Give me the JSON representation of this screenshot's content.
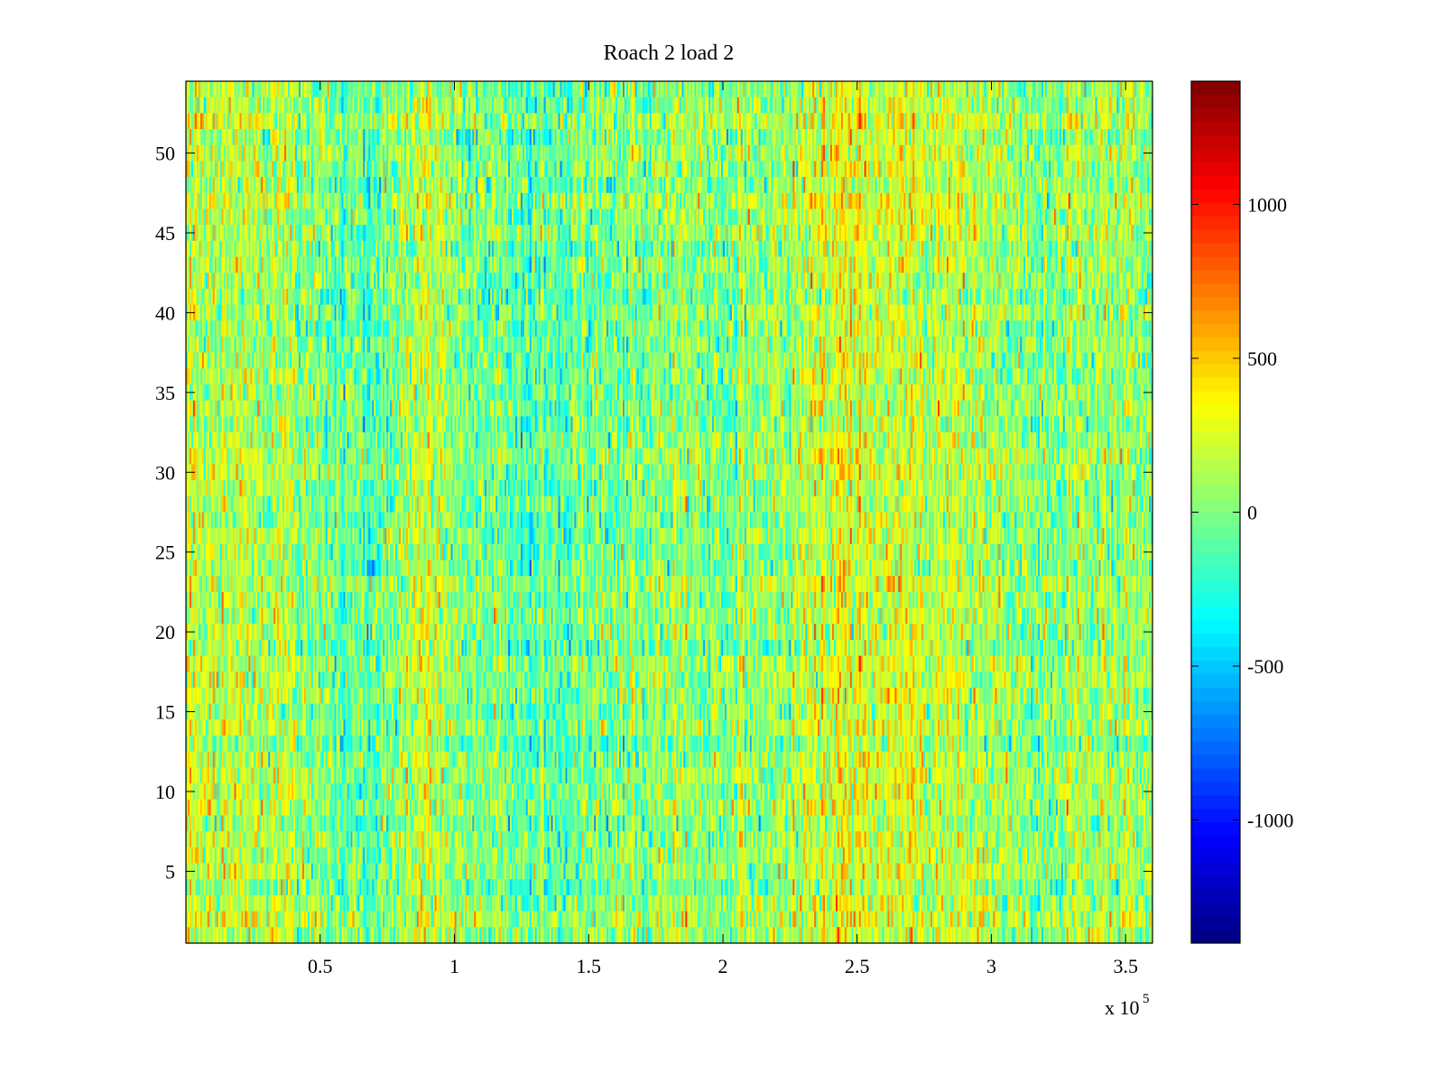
{
  "chart_data": {
    "type": "heatmap",
    "title": "Roach 2 load 2",
    "xlabel": "",
    "ylabel": "",
    "xlim": [
      0,
      360000
    ],
    "ylim": [
      0.5,
      54.5
    ],
    "x_scale_label": "x 10",
    "x_scale_exponent": "5",
    "x_ticks": [
      {
        "value": 50000,
        "label": "0.5"
      },
      {
        "value": 100000,
        "label": "1"
      },
      {
        "value": 150000,
        "label": "1.5"
      },
      {
        "value": 200000,
        "label": "2"
      },
      {
        "value": 250000,
        "label": "2.5"
      },
      {
        "value": 300000,
        "label": "3"
      },
      {
        "value": 350000,
        "label": "3.5"
      }
    ],
    "y_ticks": [
      {
        "value": 5,
        "label": "5"
      },
      {
        "value": 10,
        "label": "10"
      },
      {
        "value": 15,
        "label": "15"
      },
      {
        "value": 20,
        "label": "20"
      },
      {
        "value": 25,
        "label": "25"
      },
      {
        "value": 30,
        "label": "30"
      },
      {
        "value": 35,
        "label": "35"
      },
      {
        "value": 40,
        "label": "40"
      },
      {
        "value": 45,
        "label": "45"
      },
      {
        "value": 50,
        "label": "50"
      }
    ],
    "colorbar": {
      "colormap": "jet",
      "clim": [
        -1400,
        1400
      ],
      "ticks": [
        {
          "value": 1000,
          "label": "1000"
        },
        {
          "value": 500,
          "label": "500"
        },
        {
          "value": 0,
          "label": "0"
        },
        {
          "value": -500,
          "label": "-500"
        },
        {
          "value": -1000,
          "label": "-1000"
        }
      ]
    },
    "rows": 54,
    "columns_estimated": 540,
    "column_trend": {
      "x": [
        0,
        20000,
        40000,
        60000,
        70000,
        80000,
        90000,
        100000,
        120000,
        125000,
        140000,
        160000,
        180000,
        200000,
        220000,
        235000,
        245000,
        255000,
        270000,
        290000,
        310000,
        330000,
        350000,
        360000
      ],
      "mean": [
        180,
        140,
        60,
        -60,
        -120,
        60,
        200,
        80,
        -40,
        -150,
        -60,
        20,
        40,
        40,
        60,
        140,
        320,
        200,
        180,
        140,
        80,
        60,
        60,
        40
      ]
    },
    "grid": false,
    "legend": "colorbar-right"
  }
}
